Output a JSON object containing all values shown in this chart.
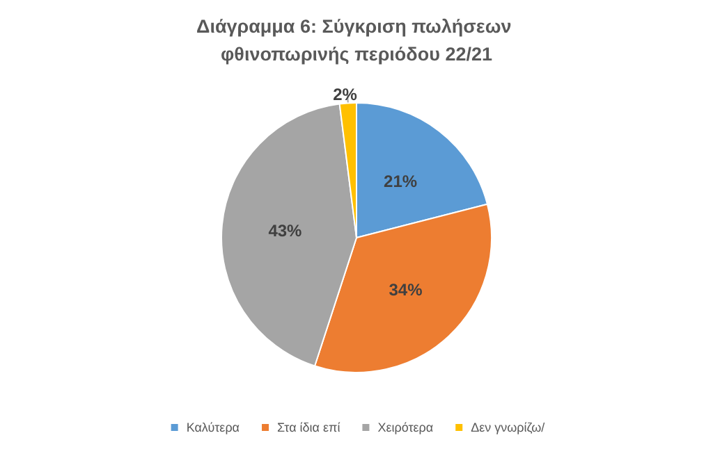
{
  "chart_data": {
    "type": "pie",
    "title": "Διάγραμμα 6: Σύγκριση πωλήσεων φθινοπωρινής περιόδου 22/21",
    "categories": [
      "Καλύτερα",
      "Στα ίδια επί",
      "Χειρότερα",
      "Δεν γνωρίζω/"
    ],
    "values": [
      21,
      34,
      43,
      2
    ],
    "colors": [
      "#5b9bd5",
      "#ed7d31",
      "#a5a5a5",
      "#ffc000"
    ],
    "value_labels": [
      "21%",
      "34%",
      "43%",
      "2%"
    ],
    "legend": "bottom"
  }
}
